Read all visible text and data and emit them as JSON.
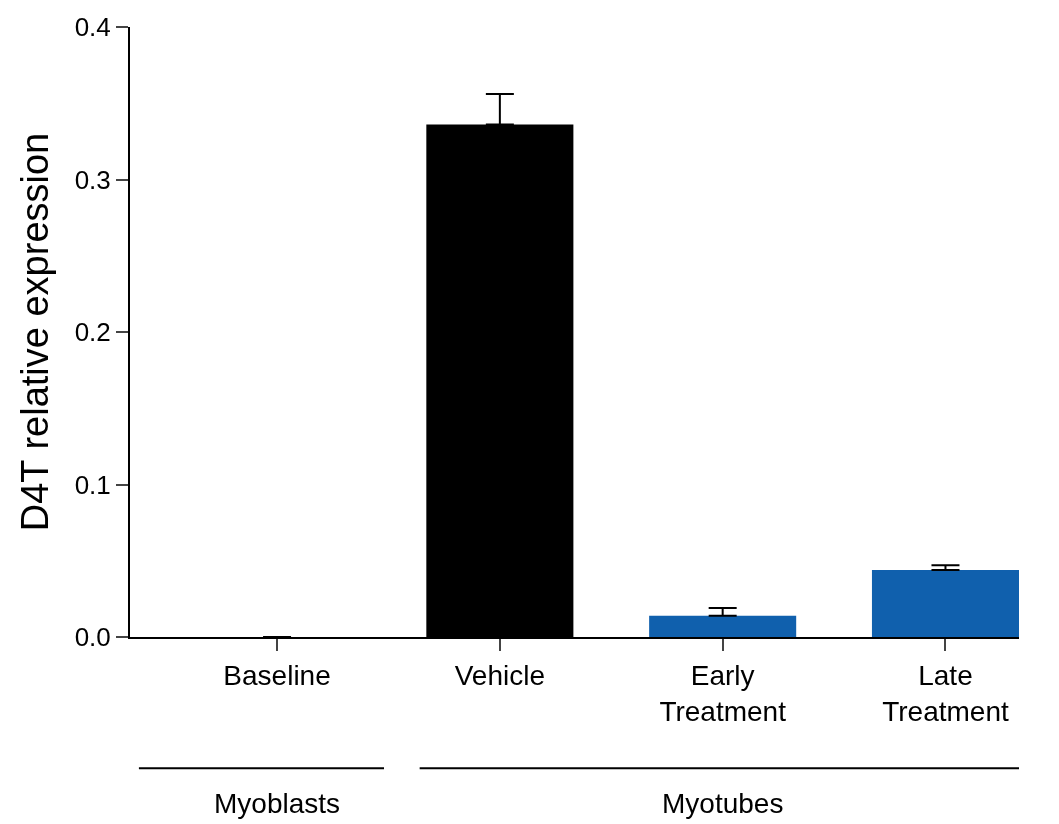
{
  "chart_data": {
    "type": "bar",
    "ylabel": "D4T relative expression",
    "categories": [
      "Baseline",
      "Vehicle",
      "Early\nTreatment",
      "Late\nTreatment"
    ],
    "values": [
      0,
      0.336,
      0.014,
      0.044
    ],
    "colors": [
      "#000000",
      "#000000",
      "#1060ad",
      "#1060ad"
    ],
    "errors": [
      null,
      [
        0.336,
        0.356
      ],
      [
        0.014,
        0.019
      ],
      [
        0.044,
        0.047
      ]
    ],
    "ylim": [
      0,
      0.4
    ],
    "yticks": [
      {
        "value": 0,
        "label": "0.0"
      },
      0.1,
      0.2,
      0.3,
      0.4
    ],
    "legend": false,
    "annotations": [
      "Myoblasts",
      "Myotubes"
    ]
  }
}
